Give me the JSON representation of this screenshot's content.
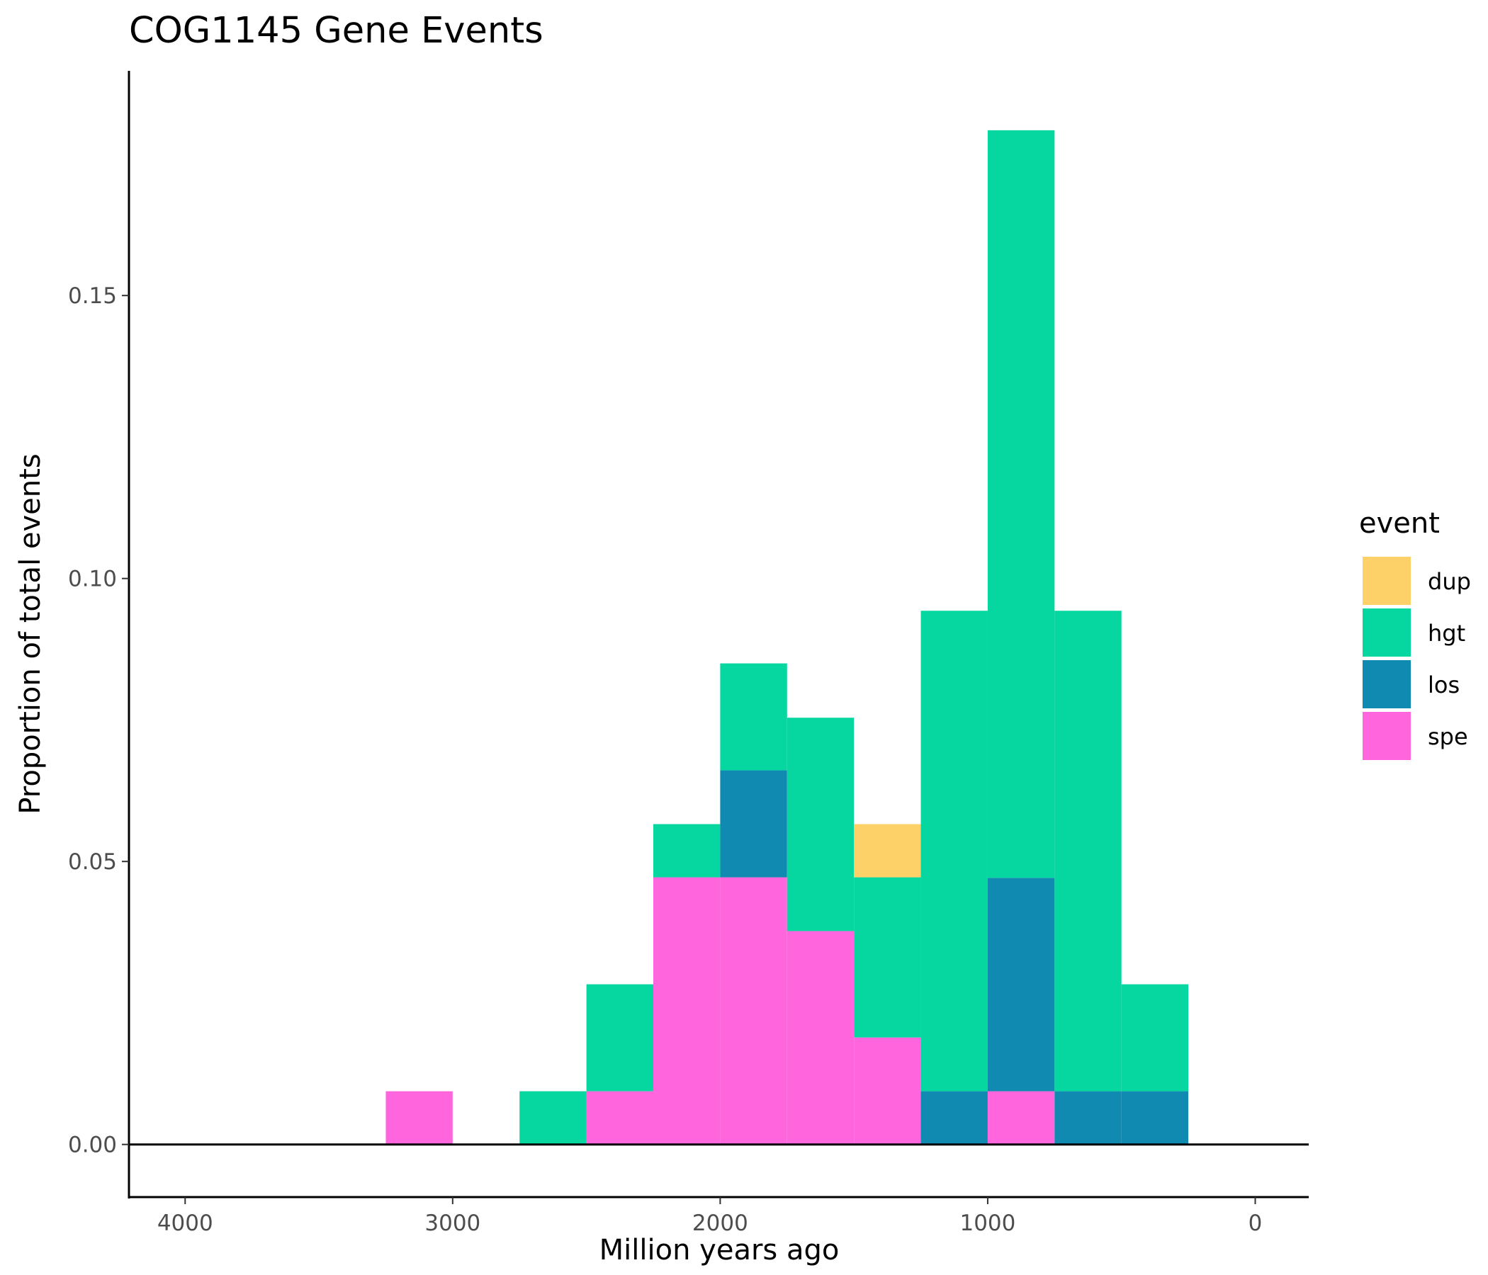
{
  "chart_data": {
    "type": "bar",
    "subtype": "stacked-histogram",
    "title": "COG1145 Gene Events",
    "xlabel": "Million years ago",
    "ylabel": "Proportion of total events",
    "x_reversed": true,
    "xlim": [
      4210,
      -200
    ],
    "ylim": [
      -0.0093,
      0.1897
    ],
    "x_ticks": [
      4000,
      3000,
      2000,
      1000,
      0
    ],
    "x_tick_labels": [
      "4000",
      "3000",
      "2000",
      "1000",
      "0"
    ],
    "y_ticks": [
      0.0,
      0.05,
      0.1,
      0.15
    ],
    "y_tick_labels": [
      "0.00",
      "0.05",
      "0.10",
      "0.15"
    ],
    "bin_width": 250,
    "bins": [
      3125,
      2625,
      2375,
      2125,
      1875,
      1625,
      1375,
      1125,
      875,
      625,
      375
    ],
    "stack_order": [
      "spe",
      "los",
      "hgt",
      "dup"
    ],
    "series": [
      {
        "name": "spe",
        "values": [
          0.0094,
          0,
          0.0094,
          0.0472,
          0.0472,
          0.0377,
          0.0189,
          0,
          0.0094,
          0,
          0
        ]
      },
      {
        "name": "los",
        "values": [
          0,
          0,
          0,
          0,
          0.0189,
          0,
          0,
          0.0094,
          0.0377,
          0.0094,
          0.0094
        ]
      },
      {
        "name": "hgt",
        "values": [
          0,
          0.0094,
          0.0189,
          0.0094,
          0.0189,
          0.0377,
          0.0283,
          0.0849,
          0.1321,
          0.0849,
          0.0189
        ]
      },
      {
        "name": "dup",
        "values": [
          0,
          0,
          0,
          0,
          0,
          0,
          0.0094,
          0,
          0,
          0,
          0
        ]
      }
    ],
    "legend": {
      "title": "event",
      "position": "right",
      "entries": [
        {
          "label": "dup",
          "color": "#FDD167"
        },
        {
          "label": "hgt",
          "color": "#06D6A0"
        },
        {
          "label": "los",
          "color": "#118AB2"
        },
        {
          "label": "spe",
          "color": "#FF66DE"
        }
      ]
    },
    "grid": false
  }
}
